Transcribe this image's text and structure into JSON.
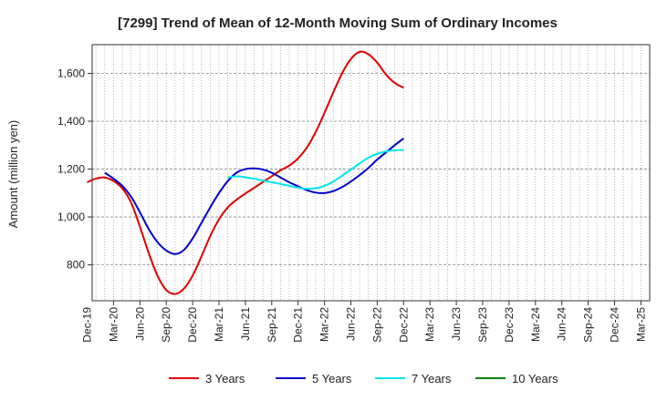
{
  "chart_data": {
    "type": "line",
    "title": "[7299]  Trend of Mean of 12-Month Moving Sum of Ordinary Incomes",
    "xlabel": "",
    "ylabel": "Amount (million yen)",
    "ylim": [
      650,
      1720
    ],
    "y_ticks": [
      800,
      1000,
      1200,
      1400,
      1600
    ],
    "y_tick_labels": [
      "800",
      "1,000",
      "1,200",
      "1,400",
      "1,600"
    ],
    "x_tick_labels": [
      "Dec-19",
      "Mar-20",
      "Jun-20",
      "Sep-20",
      "Dec-20",
      "Mar-21",
      "Jun-21",
      "Sep-21",
      "Dec-21",
      "Mar-22",
      "Jun-22",
      "Sep-22",
      "Dec-22",
      "Mar-23",
      "Jun-23",
      "Sep-23",
      "Dec-23",
      "Mar-24",
      "Jun-24",
      "Sep-24",
      "Dec-24",
      "Mar-25"
    ],
    "grid": true,
    "legend_position": "bottom",
    "series": [
      {
        "name": "3 Years",
        "color": "#dd0000",
        "points": [
          [
            0,
            1145
          ],
          [
            1,
            1160
          ],
          [
            2,
            1165
          ],
          [
            3,
            1150
          ],
          [
            4,
            1120
          ],
          [
            5,
            1060
          ],
          [
            6,
            960
          ],
          [
            7,
            850
          ],
          [
            8,
            755
          ],
          [
            9,
            695
          ],
          [
            10,
            678
          ],
          [
            11,
            700
          ],
          [
            12,
            755
          ],
          [
            13,
            835
          ],
          [
            14,
            920
          ],
          [
            15,
            990
          ],
          [
            16,
            1040
          ],
          [
            17,
            1072
          ],
          [
            18,
            1098
          ],
          [
            19,
            1122
          ],
          [
            20,
            1146
          ],
          [
            21,
            1170
          ],
          [
            22,
            1195
          ],
          [
            23,
            1215
          ],
          [
            24,
            1245
          ],
          [
            25,
            1290
          ],
          [
            26,
            1355
          ],
          [
            27,
            1435
          ],
          [
            28,
            1520
          ],
          [
            29,
            1600
          ],
          [
            30,
            1660
          ],
          [
            31,
            1690
          ],
          [
            32,
            1680
          ],
          [
            33,
            1645
          ],
          [
            34,
            1595
          ],
          [
            35,
            1560
          ],
          [
            36,
            1540
          ]
        ]
      },
      {
        "name": "5 Years",
        "color": "#0000cc",
        "points": [
          [
            2,
            1185
          ],
          [
            3,
            1160
          ],
          [
            4,
            1130
          ],
          [
            5,
            1085
          ],
          [
            6,
            1020
          ],
          [
            7,
            950
          ],
          [
            8,
            895
          ],
          [
            9,
            860
          ],
          [
            10,
            845
          ],
          [
            11,
            862
          ],
          [
            12,
            910
          ],
          [
            13,
            975
          ],
          [
            14,
            1040
          ],
          [
            15,
            1100
          ],
          [
            16,
            1150
          ],
          [
            17,
            1185
          ],
          [
            18,
            1200
          ],
          [
            19,
            1203
          ],
          [
            20,
            1198
          ],
          [
            21,
            1185
          ],
          [
            22,
            1165
          ],
          [
            23,
            1145
          ],
          [
            24,
            1128
          ],
          [
            25,
            1112
          ],
          [
            26,
            1102
          ],
          [
            27,
            1100
          ],
          [
            28,
            1108
          ],
          [
            29,
            1125
          ],
          [
            30,
            1148
          ],
          [
            31,
            1175
          ],
          [
            32,
            1205
          ],
          [
            33,
            1240
          ],
          [
            34,
            1270
          ],
          [
            35,
            1300
          ],
          [
            36,
            1328
          ]
        ]
      },
      {
        "name": "7 Years",
        "color": "#00e5ee",
        "points": [
          [
            16,
            1165
          ],
          [
            17,
            1170
          ],
          [
            18,
            1166
          ],
          [
            19,
            1160
          ],
          [
            20,
            1152
          ],
          [
            21,
            1145
          ],
          [
            22,
            1138
          ],
          [
            23,
            1130
          ],
          [
            24,
            1122
          ],
          [
            25,
            1118
          ],
          [
            26,
            1120
          ],
          [
            27,
            1130
          ],
          [
            28,
            1148
          ],
          [
            29,
            1172
          ],
          [
            30,
            1198
          ],
          [
            31,
            1224
          ],
          [
            32,
            1248
          ],
          [
            33,
            1264
          ],
          [
            34,
            1274
          ],
          [
            35,
            1279
          ],
          [
            36,
            1280
          ]
        ]
      },
      {
        "name": "10 Years",
        "color": "#008000",
        "points": []
      }
    ]
  }
}
